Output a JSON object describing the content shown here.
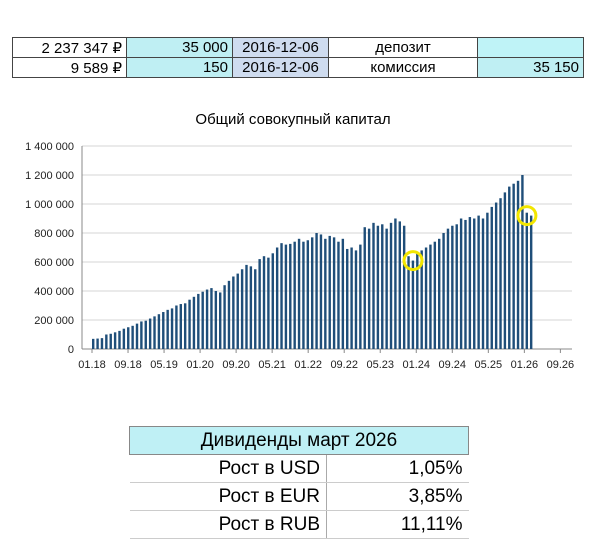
{
  "top_rows": [
    {
      "balance": "2 237 347 ₽",
      "amount": "35 000",
      "date": "2016-12-06",
      "type": "депозит",
      "extra": ""
    },
    {
      "balance": "9 589 ₽",
      "amount": "150",
      "date": "2016-12-06",
      "type": "комиссия",
      "extra": "35 150"
    }
  ],
  "chart_data": {
    "type": "bar",
    "title": "Общий совокупный капитал",
    "xlabel": "",
    "ylabel": "",
    "ylim": [
      0,
      1400000
    ],
    "y_ticks": [
      "0",
      "200 000",
      "400 000",
      "600 000",
      "800 000",
      "1 000 000",
      "1 200 000",
      "1 400 000"
    ],
    "x_ticks": [
      "01.18",
      "09.18",
      "05.19",
      "01.20",
      "09.20",
      "05.21",
      "01.22",
      "09.22",
      "05.23",
      "01.24",
      "09.24",
      "05.25",
      "01.26",
      "09.26"
    ],
    "grid": true,
    "bar_color": "#1f4e79",
    "highlight_color": "#f2e600",
    "highlights": [
      "около 01.24",
      "около 01.26"
    ],
    "values": [
      70000,
      72000,
      75000,
      100000,
      105000,
      115000,
      125000,
      140000,
      150000,
      160000,
      175000,
      190000,
      195000,
      210000,
      225000,
      240000,
      255000,
      270000,
      280000,
      300000,
      310000,
      315000,
      340000,
      360000,
      380000,
      395000,
      410000,
      420000,
      400000,
      390000,
      440000,
      470000,
      500000,
      520000,
      550000,
      580000,
      570000,
      550000,
      620000,
      640000,
      630000,
      660000,
      700000,
      730000,
      720000,
      725000,
      740000,
      760000,
      740000,
      750000,
      770000,
      800000,
      790000,
      760000,
      780000,
      770000,
      740000,
      760000,
      690000,
      700000,
      680000,
      720000,
      840000,
      830000,
      870000,
      850000,
      860000,
      830000,
      870000,
      900000,
      880000,
      850000,
      640000,
      610000,
      660000,
      680000,
      700000,
      720000,
      740000,
      760000,
      800000,
      830000,
      850000,
      860000,
      900000,
      890000,
      910000,
      900000,
      920000,
      900000,
      940000,
      980000,
      1010000,
      1040000,
      1080000,
      1120000,
      1140000,
      1160000,
      1200000,
      940000,
      920000
    ]
  },
  "dividends": {
    "title": "Дивиденды март 2026",
    "rows": [
      {
        "label": "Рост в USD",
        "value": "1,05%"
      },
      {
        "label": "Рост в EUR",
        "value": "3,85%"
      },
      {
        "label": "Рост в RUB",
        "value": "11,11%"
      }
    ]
  }
}
